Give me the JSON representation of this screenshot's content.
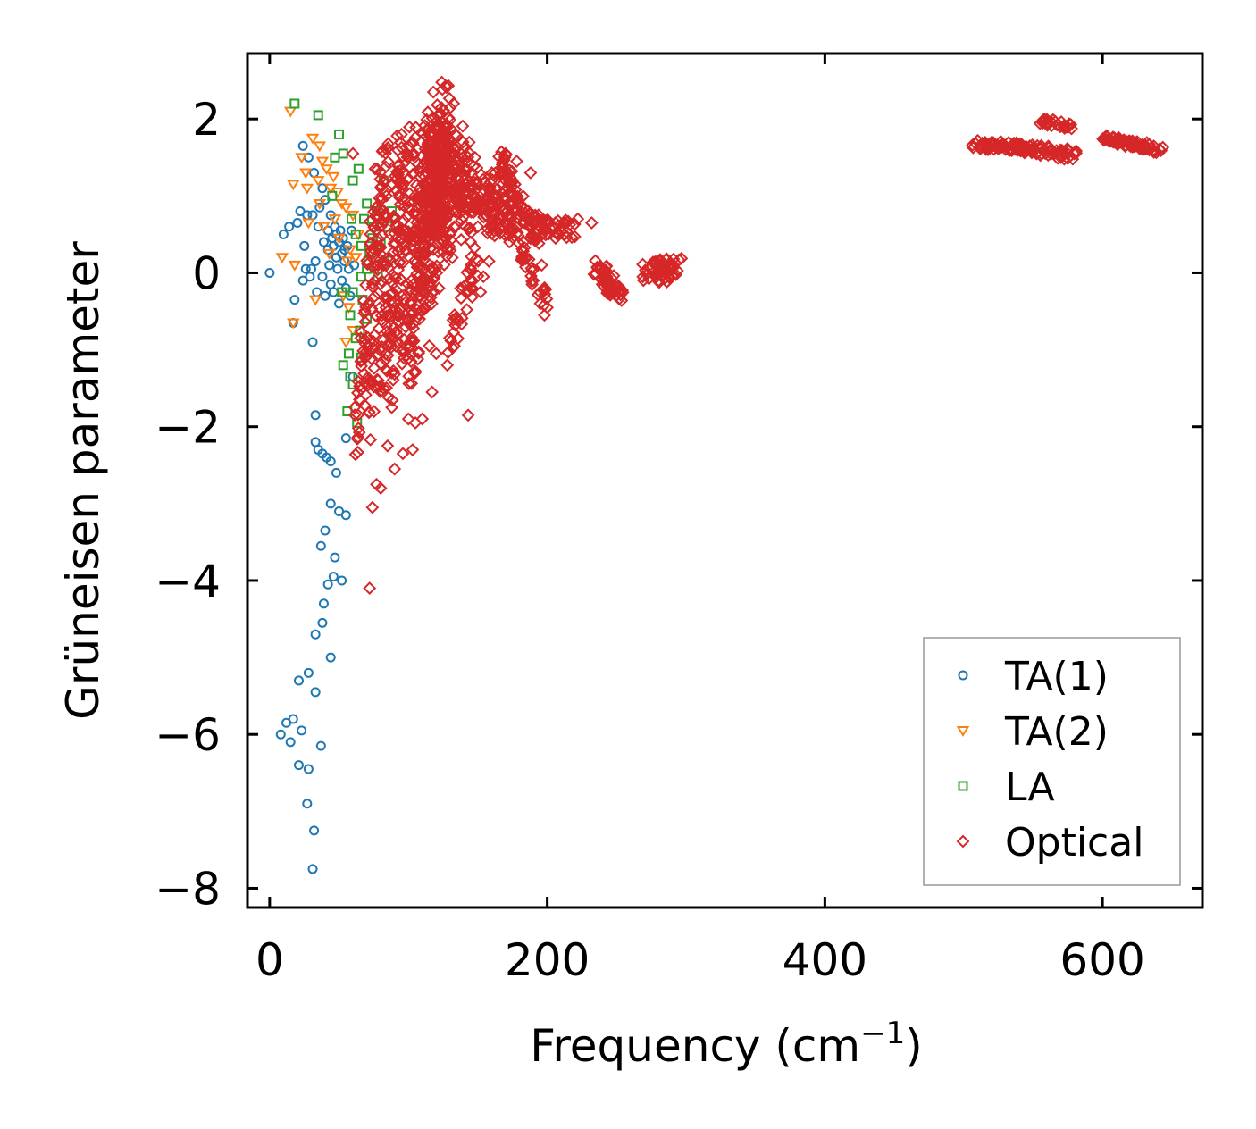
{
  "chart_data": {
    "type": "scatter",
    "title": "",
    "xlabel": "Frequency (cm",
    "xlabel_sup": "−1",
    "xlabel_end": ")",
    "ylabel": "Grüneisen parameter",
    "xlim": [
      -16,
      672
    ],
    "ylim": [
      -8.25,
      2.85
    ],
    "xticks": [
      0,
      200,
      400,
      600
    ],
    "yticks": [
      -8,
      -6,
      -4,
      -2,
      0,
      2
    ],
    "xtick_labels": [
      "0",
      "200",
      "400",
      "600"
    ],
    "ytick_labels": [
      "−8",
      "−6",
      "−4",
      "−2",
      "0",
      "2"
    ],
    "grid": false,
    "legend_position": "lower-right",
    "series": [
      {
        "name": "TA(1)",
        "marker": "circle",
        "color": "#1f77b4",
        "points": [
          [
            0,
            0
          ],
          [
            10,
            0.5
          ],
          [
            14,
            0.6
          ],
          [
            17,
            -0.65
          ],
          [
            18,
            -0.35
          ],
          [
            20,
            0.65
          ],
          [
            22,
            0.8
          ],
          [
            24,
            1.65
          ],
          [
            24,
            -0.1
          ],
          [
            25,
            0.35
          ],
          [
            26,
            0.05
          ],
          [
            27,
            0.75
          ],
          [
            28,
            1.5
          ],
          [
            29,
            -0.05
          ],
          [
            30,
            0.05
          ],
          [
            31,
            -0.9
          ],
          [
            31,
            0.75
          ],
          [
            32,
            1.3
          ],
          [
            33,
            0.15
          ],
          [
            34,
            -0.25
          ],
          [
            35,
            0.6
          ],
          [
            36,
            0.85
          ],
          [
            38,
            1.1
          ],
          [
            38,
            -0.05
          ],
          [
            39,
            0.4
          ],
          [
            40,
            0.95
          ],
          [
            40,
            -0.3
          ],
          [
            42,
            0.3
          ],
          [
            42,
            0.55
          ],
          [
            43,
            0.1
          ],
          [
            44,
            0.75
          ],
          [
            44,
            -0.15
          ],
          [
            45,
            0.45
          ],
          [
            46,
            0.35
          ],
          [
            46,
            -0.25
          ],
          [
            47,
            0.6
          ],
          [
            48,
            0.2
          ],
          [
            48,
            0.5
          ],
          [
            49,
            0.05
          ],
          [
            50,
            0.4
          ],
          [
            50,
            -0.4
          ],
          [
            51,
            0.55
          ],
          [
            52,
            0.25
          ],
          [
            52,
            -0.1
          ],
          [
            53,
            0.45
          ],
          [
            54,
            0.3
          ],
          [
            54,
            0.15
          ],
          [
            55,
            -0.2
          ],
          [
            56,
            0.35
          ],
          [
            57,
            0.05
          ],
          [
            58,
            -0.3
          ],
          [
            59,
            0.55
          ],
          [
            60,
            -1.35
          ],
          [
            61,
            0.1
          ],
          [
            55,
            -2.15
          ],
          [
            33,
            -1.85
          ],
          [
            33,
            -2.2
          ],
          [
            35,
            -2.3
          ],
          [
            38,
            -2.35
          ],
          [
            41,
            -2.4
          ],
          [
            44,
            -2.45
          ],
          [
            48,
            -2.6
          ],
          [
            44,
            -3.0
          ],
          [
            50,
            -3.1
          ],
          [
            55,
            -3.15
          ],
          [
            40,
            -3.35
          ],
          [
            37,
            -3.55
          ],
          [
            47,
            -3.7
          ],
          [
            46,
            -3.95
          ],
          [
            52,
            -4.0
          ],
          [
            42,
            -4.05
          ],
          [
            39,
            -4.3
          ],
          [
            38,
            -4.55
          ],
          [
            33,
            -4.7
          ],
          [
            44,
            -5.0
          ],
          [
            28,
            -5.2
          ],
          [
            21,
            -5.3
          ],
          [
            33,
            -5.45
          ],
          [
            17,
            -5.8
          ],
          [
            12,
            -5.85
          ],
          [
            23,
            -5.95
          ],
          [
            8,
            -6.0
          ],
          [
            15,
            -6.1
          ],
          [
            37,
            -6.15
          ],
          [
            21,
            -6.4
          ],
          [
            28,
            -6.45
          ],
          [
            27,
            -6.9
          ],
          [
            32,
            -7.25
          ],
          [
            31,
            -7.75
          ]
        ]
      },
      {
        "name": "TA(2)",
        "marker": "triangle-down",
        "color": "#ff7f0e",
        "points": [
          [
            15,
            2.1
          ],
          [
            31,
            1.75
          ],
          [
            36,
            1.65
          ],
          [
            23,
            1.5
          ],
          [
            38,
            1.45
          ],
          [
            26,
            1.3
          ],
          [
            41,
            1.35
          ],
          [
            46,
            1.25
          ],
          [
            17,
            1.15
          ],
          [
            27,
            1.1
          ],
          [
            35,
            1.2
          ],
          [
            44,
            1.1
          ],
          [
            49,
            1.05
          ],
          [
            52,
            0.9
          ],
          [
            55,
            0.85
          ],
          [
            60,
            0.75
          ],
          [
            39,
            0.6
          ],
          [
            50,
            0.45
          ],
          [
            58,
            0.3
          ],
          [
            62,
            0.2
          ],
          [
            9,
            0.2
          ],
          [
            18,
            0.1
          ],
          [
            33,
            -0.35
          ],
          [
            53,
            -0.3
          ],
          [
            57,
            -0.45
          ],
          [
            55,
            -0.9
          ],
          [
            60,
            -0.75
          ],
          [
            17,
            -0.65
          ],
          [
            47,
            0.7
          ],
          [
            43,
            0.25
          ],
          [
            56,
            0.15
          ],
          [
            64,
            0.5
          ],
          [
            36,
            0.9
          ],
          [
            28,
            0.65
          ]
        ]
      },
      {
        "name": "LA",
        "marker": "square",
        "color": "#2ca02c",
        "points": [
          [
            18,
            2.2
          ],
          [
            35,
            2.05
          ],
          [
            50,
            1.8
          ],
          [
            53,
            1.55
          ],
          [
            47,
            1.5
          ],
          [
            60,
            1.2
          ],
          [
            64,
            1.35
          ],
          [
            82,
            1.2
          ],
          [
            45,
            1.0
          ],
          [
            70,
            0.9
          ],
          [
            88,
            0.8
          ],
          [
            59,
            0.7
          ],
          [
            75,
            0.6
          ],
          [
            62,
            0.5
          ],
          [
            80,
            0.4
          ],
          [
            66,
            0.35
          ],
          [
            72,
            0.25
          ],
          [
            83,
            0.15
          ],
          [
            70,
            0.05
          ],
          [
            78,
            -0.05
          ],
          [
            60,
            -0.25
          ],
          [
            67,
            -0.35
          ],
          [
            58,
            -0.55
          ],
          [
            70,
            -0.6
          ],
          [
            65,
            -0.75
          ],
          [
            62,
            -0.85
          ],
          [
            66,
            -1.1
          ],
          [
            58,
            -1.35
          ],
          [
            53,
            -1.2
          ],
          [
            60,
            -1.45
          ],
          [
            56,
            -1.8
          ],
          [
            63,
            -1.95
          ],
          [
            68,
            0.7
          ],
          [
            74,
            0.45
          ],
          [
            77,
            0.8
          ],
          [
            85,
            0.6
          ],
          [
            71,
            0.15
          ],
          [
            66,
            -0.05
          ],
          [
            52,
            -0.25
          ],
          [
            57,
            -1.05
          ]
        ]
      },
      {
        "name": "Optical",
        "marker": "diamond",
        "color": "#d62728",
        "points": [
          [
            72,
            -4.1
          ],
          [
            74,
            -3.05
          ],
          [
            77,
            -2.75
          ],
          [
            80,
            -2.8
          ],
          [
            85,
            -2.25
          ],
          [
            90,
            -2.55
          ],
          [
            96,
            -2.35
          ],
          [
            103,
            -2.3
          ],
          [
            88,
            -1.75
          ],
          [
            100,
            -1.9
          ],
          [
            105,
            -1.95
          ],
          [
            110,
            -1.9
          ],
          [
            117,
            -1.55
          ],
          [
            143,
            -1.85
          ],
          [
            133,
            -0.95
          ],
          [
            128,
            -1.2
          ],
          [
            120,
            -1.05
          ],
          [
            146,
            -0.2
          ],
          [
            152,
            -0.25
          ],
          [
            154,
            -0.05
          ],
          [
            169,
            0.5
          ],
          [
            183,
            0.4
          ],
          [
            195,
            -0.4
          ],
          [
            198,
            -0.55
          ],
          [
            200,
            -0.45
          ],
          [
            213,
            0.65
          ],
          [
            222,
            0.7
          ],
          [
            232,
            0.65
          ],
          [
            60,
            1.55
          ],
          [
            95,
            1.8
          ],
          [
            118,
            2.35
          ],
          [
            100,
            1.5
          ],
          [
            105,
            0.8
          ],
          [
            98,
            0.3
          ],
          [
            95,
            -0.3
          ],
          [
            92,
            -0.8
          ],
          [
            88,
            -1.3
          ],
          [
            85,
            -0.5
          ],
          [
            82,
            0.1
          ],
          [
            80,
            0.6
          ],
          [
            170,
            1.55
          ],
          [
            178,
            1.45
          ],
          [
            188,
            1.3
          ],
          [
            148,
            1.5
          ],
          [
            140,
            1.2
          ],
          [
            160,
            1.3
          ],
          [
            125,
            1.8
          ],
          [
            112,
            0.9
          ],
          [
            102,
            -0.1
          ],
          [
            108,
            -0.6
          ],
          [
            115,
            -0.95
          ],
          [
            122,
            -0.2
          ],
          [
            130,
            0.5
          ],
          [
            138,
            0.9
          ],
          [
            150,
            0.6
          ],
          [
            158,
            0.15
          ],
          [
            162,
            0.75
          ],
          [
            175,
            1.0
          ],
          [
            182,
            0.2
          ],
          [
            190,
            -0.1
          ],
          [
            196,
            0.1
          ],
          [
            206,
            0.45
          ],
          [
            210,
            0.55
          ]
        ],
        "clusters": [
          {
            "x0": 66,
            "y0": -2.2,
            "x1": 82,
            "y1": 1.5,
            "w": 6,
            "h": 0.35,
            "n": 130
          },
          {
            "x0": 82,
            "y0": -1.5,
            "x1": 100,
            "y1": 1.7,
            "w": 7,
            "h": 0.35,
            "n": 150
          },
          {
            "x0": 100,
            "y0": -1.2,
            "x1": 118,
            "y1": 2.0,
            "w": 7,
            "h": 0.3,
            "n": 160
          },
          {
            "x0": 112,
            "y0": -0.3,
            "x1": 128,
            "y1": 2.3,
            "w": 6,
            "h": 0.3,
            "n": 130
          },
          {
            "x0": 115,
            "y0": 1.9,
            "x1": 128,
            "y1": 0.2,
            "w": 5,
            "h": 0.2,
            "n": 70
          },
          {
            "x0": 120,
            "y0": 1.7,
            "x1": 145,
            "y1": 0.5,
            "w": 6,
            "h": 0.3,
            "n": 90
          },
          {
            "x0": 100,
            "y0": 0.3,
            "x1": 140,
            "y1": 1.6,
            "w": 8,
            "h": 0.35,
            "n": 110
          },
          {
            "x0": 140,
            "y0": 1.3,
            "x1": 160,
            "y1": 0.7,
            "w": 5,
            "h": 0.25,
            "n": 60
          },
          {
            "x0": 155,
            "y0": 1.2,
            "x1": 170,
            "y1": 0.6,
            "w": 5,
            "h": 0.25,
            "n": 45
          },
          {
            "x0": 165,
            "y0": 1.55,
            "x1": 180,
            "y1": 0.8,
            "w": 4,
            "h": 0.15,
            "n": 45
          },
          {
            "x0": 178,
            "y0": 0.9,
            "x1": 195,
            "y1": 0.5,
            "w": 5,
            "h": 0.15,
            "n": 40
          },
          {
            "x0": 190,
            "y0": 0.6,
            "x1": 225,
            "y1": 0.55,
            "w": 4,
            "h": 0.12,
            "n": 35
          },
          {
            "x0": 170,
            "y0": 0.7,
            "x1": 200,
            "y1": -0.4,
            "w": 3,
            "h": 0.1,
            "n": 45
          },
          {
            "x0": 130,
            "y0": -1.0,
            "x1": 150,
            "y1": 0.2,
            "w": 4,
            "h": 0.2,
            "n": 35
          },
          {
            "x0": 235,
            "y0": 0.1,
            "x1": 252,
            "y1": -0.3,
            "w": 4,
            "h": 0.1,
            "n": 55
          },
          {
            "x0": 272,
            "y0": 0.0,
            "x1": 294,
            "y1": 0.05,
            "w": 5,
            "h": 0.15,
            "n": 55
          },
          {
            "x0": 510,
            "y0": 1.67,
            "x1": 548,
            "y1": 1.62,
            "w": 5,
            "h": 0.06,
            "n": 60
          },
          {
            "x0": 548,
            "y0": 1.62,
            "x1": 582,
            "y1": 1.52,
            "w": 4,
            "h": 0.07,
            "n": 40
          },
          {
            "x0": 555,
            "y0": 1.98,
            "x1": 577,
            "y1": 1.9,
            "w": 3,
            "h": 0.04,
            "n": 25
          },
          {
            "x0": 603,
            "y0": 1.75,
            "x1": 640,
            "y1": 1.6,
            "w": 4,
            "h": 0.05,
            "n": 70
          }
        ]
      }
    ]
  }
}
